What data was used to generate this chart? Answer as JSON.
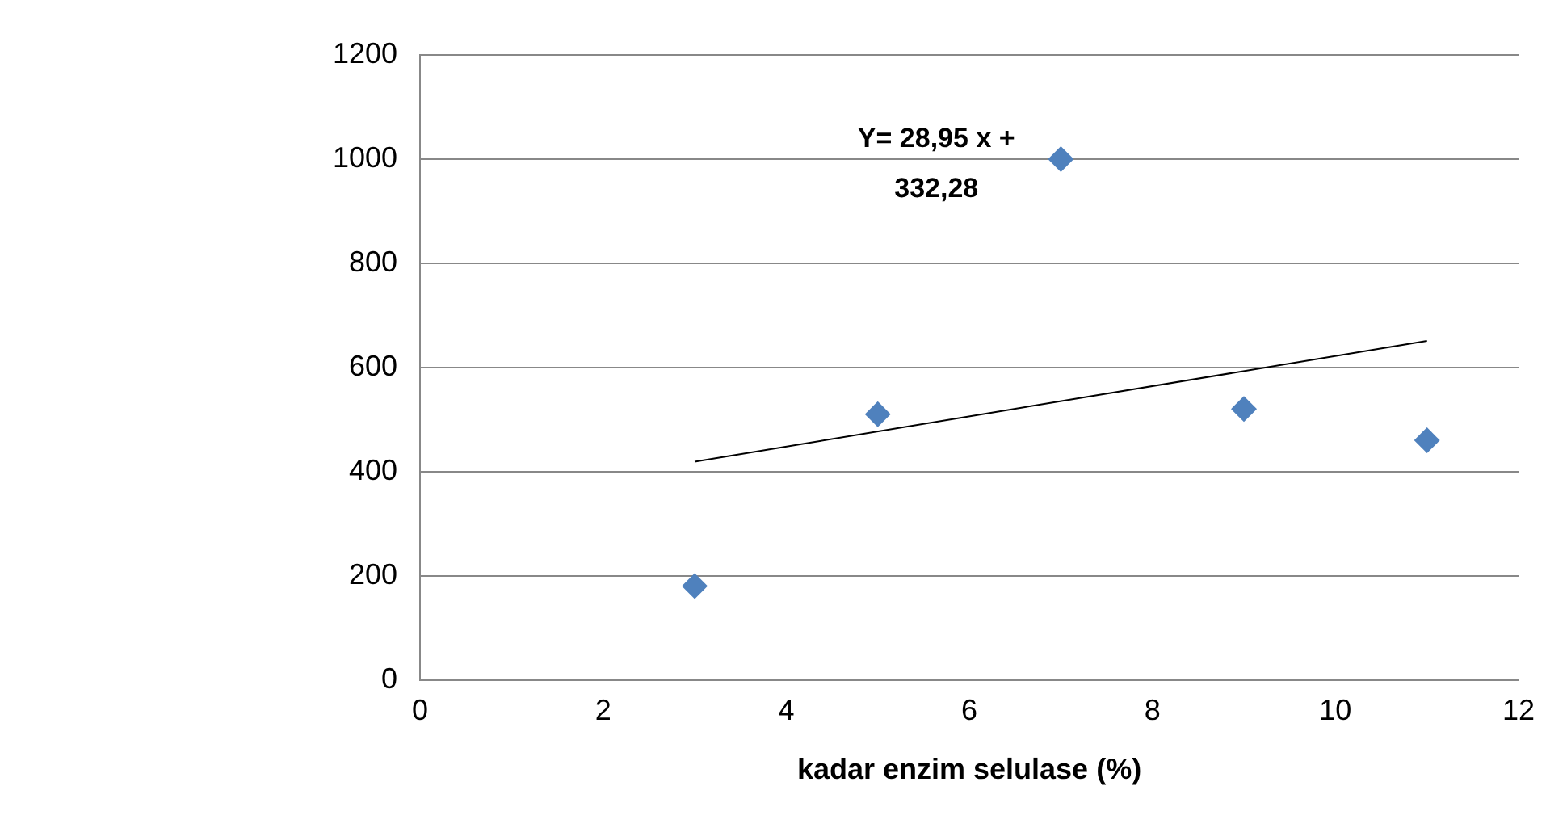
{
  "chart_data": {
    "type": "scatter",
    "xlabel": "kadar enzim selulase (%)",
    "x": [
      3,
      5,
      7,
      9,
      11
    ],
    "xlim": [
      0,
      12
    ],
    "xticks": [
      0,
      2,
      4,
      6,
      8,
      10,
      12
    ],
    "ylim": [
      0,
      1200
    ],
    "yticks": [
      0,
      200,
      400,
      600,
      800,
      1000,
      1200
    ],
    "grid": "y",
    "marker": "diamond",
    "annotations": [
      "Y= 28,95 x + 332,28"
    ],
    "series": [
      {
        "type": "scatter",
        "color": "#4f81bd",
        "values": [
          180,
          510,
          1000,
          520,
          460
        ]
      },
      {
        "type": "line",
        "color": "#000000",
        "marker": "none",
        "x": [
          3,
          11
        ],
        "values": [
          419,
          651
        ]
      }
    ]
  }
}
